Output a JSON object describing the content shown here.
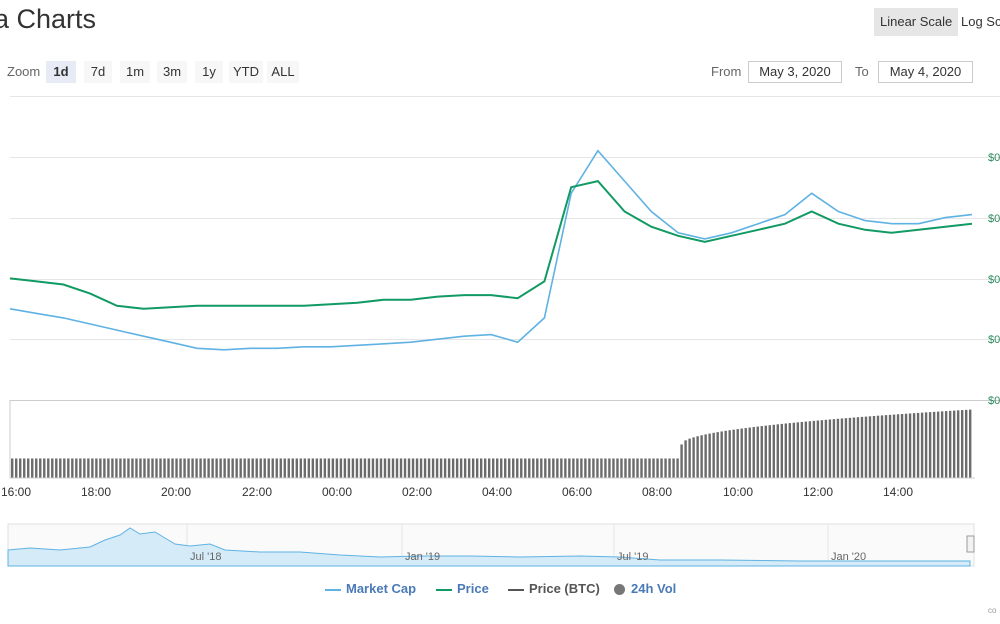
{
  "header": {
    "title": "a Charts"
  },
  "scale_toggle": {
    "linear_label": "Linear Scale",
    "log_label": "Log Sc",
    "selected": "Linear Scale"
  },
  "zoom": {
    "label": "Zoom",
    "buttons": [
      {
        "label": "1d",
        "active": true
      },
      {
        "label": "7d",
        "active": false
      },
      {
        "label": "1m",
        "active": false
      },
      {
        "label": "3m",
        "active": false
      },
      {
        "label": "1y",
        "active": false
      },
      {
        "label": "YTD",
        "active": false
      },
      {
        "label": "ALL",
        "active": false
      }
    ]
  },
  "range": {
    "from_label": "From",
    "from_value": "May 3, 2020",
    "to_label": "To",
    "to_value": "May 4, 2020"
  },
  "colors": {
    "market_cap": "#5fb2e3",
    "price": "#119a63",
    "price_btc": "#555555",
    "volume": "#666666",
    "legend_text": "#4a7ab8",
    "accent_bg": "#e6ebf5"
  },
  "chart_data": {
    "type": "line",
    "x_ticks": [
      "16:00",
      "18:00",
      "20:00",
      "22:00",
      "00:00",
      "02:00",
      "04:00",
      "06:00",
      "08:00",
      "10:00",
      "12:00",
      "14:00"
    ],
    "y_tick_labels": [
      "$0",
      "$0",
      "$0",
      "$0",
      "$0"
    ],
    "series": [
      {
        "name": "Market Cap",
        "color": "#5fb2e3",
        "values": [
          30,
          28.5,
          27,
          25,
          23,
          21,
          19,
          17,
          16.5,
          17,
          17,
          17.5,
          17.5,
          18,
          18.5,
          19,
          20,
          21,
          21.5,
          19,
          27,
          68,
          82,
          72,
          62,
          55,
          53,
          55,
          58,
          61,
          68,
          62,
          59,
          58,
          58,
          60,
          61
        ]
      },
      {
        "name": "Price",
        "color": "#119a63",
        "values": [
          40,
          39,
          38,
          35,
          31,
          30,
          30.5,
          31,
          31,
          31,
          31,
          31,
          31.5,
          32,
          33,
          33,
          34,
          34.5,
          34.5,
          33.5,
          39,
          70,
          72,
          62,
          57,
          54,
          52,
          54,
          56,
          58,
          62,
          58,
          56,
          55,
          56,
          57,
          58
        ]
      }
    ],
    "volume": {
      "name": "24h Vol",
      "values_before_spike": 0.25,
      "values_after_spike": 0.85
    },
    "navigator": {
      "labels": [
        "Jul '18",
        "Jan '19",
        "Jul '19",
        "Jan '20"
      ]
    },
    "legend": [
      "Market Cap",
      "Price",
      "Price (BTC)",
      "24h Vol"
    ]
  },
  "credits": "co"
}
